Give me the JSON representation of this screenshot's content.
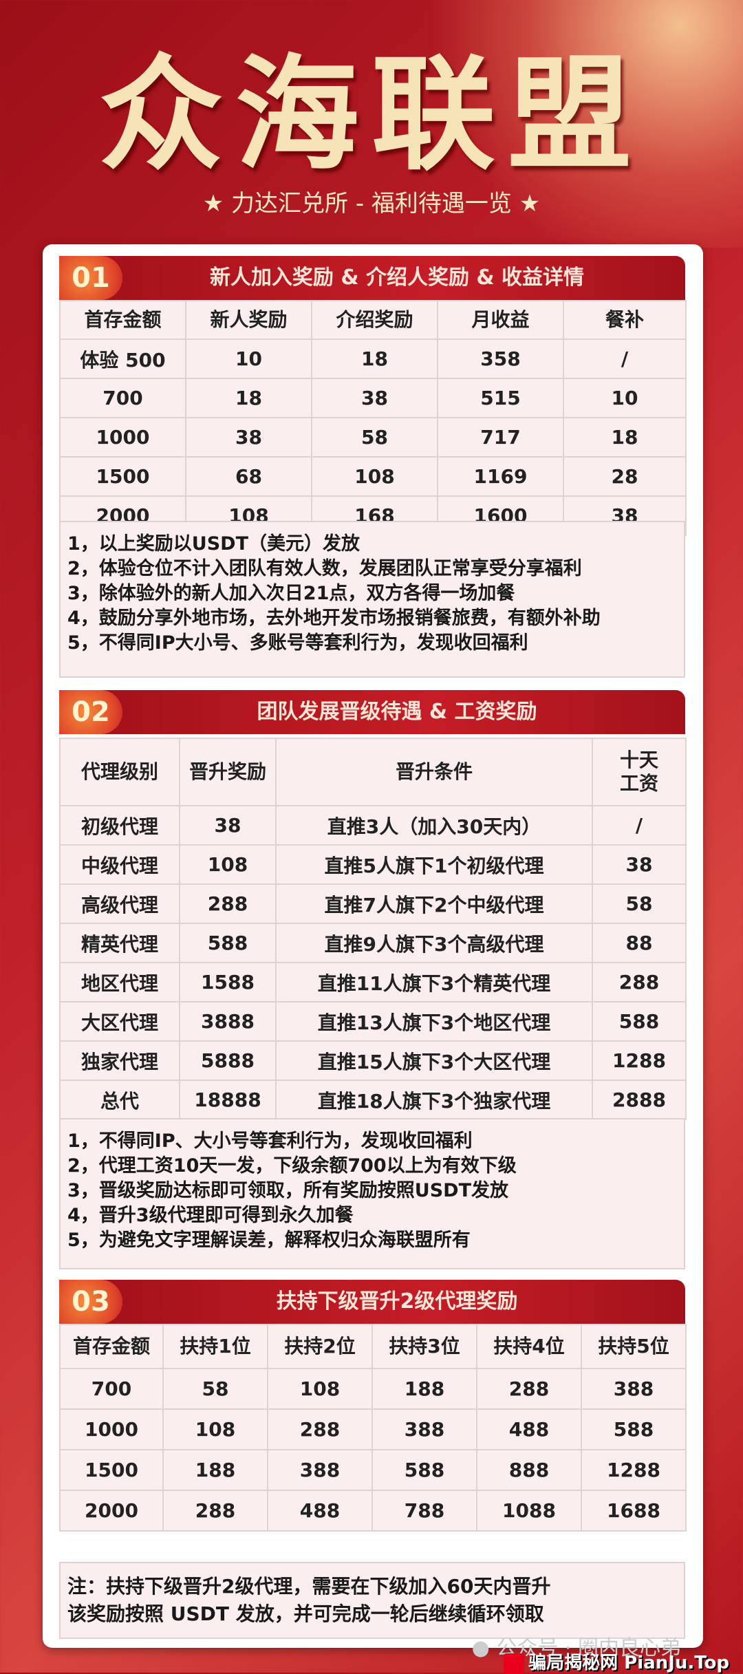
{
  "header": {
    "title": "众海联盟",
    "subtitle": "★ 力达汇兑所 - 福利待遇一览 ★"
  },
  "sections": [
    {
      "num": "01",
      "title": "新人加入奖励 & 介绍人奖励 & 收益详情",
      "columns": [
        "首存金额",
        "新人奖励",
        "介绍奖励",
        "月收益",
        "餐补"
      ],
      "rows": [
        [
          "体验 500",
          "10",
          "18",
          "358",
          "/"
        ],
        [
          "700",
          "18",
          "38",
          "515",
          "10"
        ],
        [
          "1000",
          "38",
          "58",
          "717",
          "18"
        ],
        [
          "1500",
          "68",
          "108",
          "1169",
          "28"
        ],
        [
          "2000",
          "108",
          "168",
          "1600",
          "38"
        ]
      ],
      "notes": [
        "1，以上奖励以USDT（美元）发放",
        "2，体验仓位不计入团队有效人数，发展团队正常享受分享福利",
        "3，除体验外的新人加入次日21点，双方各得一场加餐",
        "4，鼓励分享外地市场，去外地开发市场报销餐旅费，有额外补助",
        "5，不得同IP大小号、多账号等套利行为，发现收回福利"
      ]
    },
    {
      "num": "02",
      "title": "团队发展晋级待遇 & 工资奖励",
      "columns": [
        "代理级别",
        "晋升奖励",
        "晋升条件",
        "十天\n工资"
      ],
      "rows": [
        [
          "初级代理",
          "38",
          "直推3人（加入30天内）",
          "/"
        ],
        [
          "中级代理",
          "108",
          "直推5人旗下1个初级代理",
          "38"
        ],
        [
          "高级代理",
          "288",
          "直推7人旗下2个中级代理",
          "58"
        ],
        [
          "精英代理",
          "588",
          "直推9人旗下3个高级代理",
          "88"
        ],
        [
          "地区代理",
          "1588",
          "直推11人旗下3个精英代理",
          "288"
        ],
        [
          "大区代理",
          "3888",
          "直推13人旗下3个地区代理",
          "588"
        ],
        [
          "独家代理",
          "5888",
          "直推15人旗下3个大区代理",
          "1288"
        ],
        [
          "总代",
          "18888",
          "直推18人旗下3个独家代理",
          "2888"
        ]
      ],
      "notes": [
        "1，不得同IP、大小号等套利行为，发现收回福利",
        "2，代理工资10天一发，下级余额700以上为有效下级",
        "3，晋级奖励达标即可领取，所有奖励按照USDT发放",
        "4，晋升3级代理即可得到永久加餐",
        "5，为避免文字理解误差，解释权归众海联盟所有"
      ]
    },
    {
      "num": "03",
      "title": "扶持下级晋升2级代理奖励",
      "columns": [
        "首存金额",
        "扶持1位",
        "扶持2位",
        "扶持3位",
        "扶持4位",
        "扶持5位"
      ],
      "rows": [
        [
          "700",
          "58",
          "108",
          "188",
          "288",
          "388"
        ],
        [
          "1000",
          "108",
          "288",
          "388",
          "488",
          "588"
        ],
        [
          "1500",
          "188",
          "388",
          "588",
          "888",
          "1288"
        ],
        [
          "2000",
          "288",
          "488",
          "788",
          "1088",
          "1688"
        ]
      ],
      "notes": [
        "注：扶持下级晋升2级代理，需要在下级加入60天内晋升",
        "该奖励按照 USDT 发放，并可完成一轮后继续循环领取"
      ]
    }
  ],
  "watermark": {
    "wechat": "公众号 · 圈内良心弟",
    "site": "骗局揭秘网 PianJu.Top"
  }
}
